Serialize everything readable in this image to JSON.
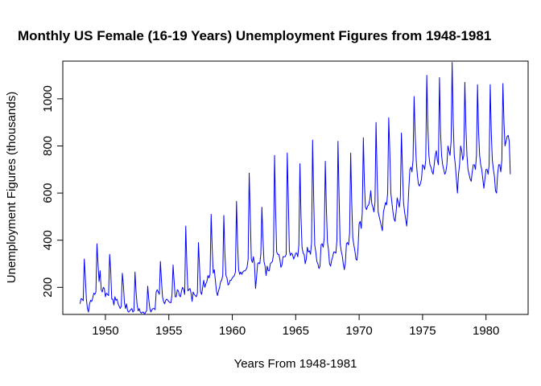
{
  "chart_data": {
    "type": "line",
    "title": "Monthly US Female (16-19 Years) Unemployment Figures from 1948-1981",
    "xlabel": "Years From 1948-1981",
    "ylabel": "Unemployment Figures (thousands)",
    "xlim": [
      1946.64,
      1983.32
    ],
    "ylim": [
      85,
      1160
    ],
    "x_ticks": [
      1950,
      1955,
      1960,
      1965,
      1970,
      1975,
      1980
    ],
    "x_tick_labels": [
      "1950",
      "1955",
      "1960",
      "1965",
      "1970",
      "1975",
      "1980"
    ],
    "y_ticks": [
      200,
      400,
      600,
      800,
      1000
    ],
    "y_tick_labels": [
      "200",
      "400",
      "600",
      "800",
      "1000"
    ],
    "grid": false,
    "legend": "none",
    "series_color": "#0000ff",
    "x_start": 1948.0,
    "x_step": 0.08333,
    "series": [
      {
        "values": [
          130,
          152,
          150,
          143,
          320,
          240,
          150,
          110,
          95,
          130,
          145,
          140,
          155,
          175,
          170,
          180,
          385,
          300,
          225,
          270,
          190,
          180,
          200,
          195,
          160,
          175,
          170,
          165,
          340,
          270,
          150,
          150,
          125,
          160,
          145,
          150,
          130,
          120,
          110,
          120,
          260,
          210,
          135,
          110,
          130,
          100,
          95,
          100,
          105,
          110,
          95,
          100,
          265,
          180,
          125,
          100,
          110,
          95,
          90,
          95,
          95,
          85,
          95,
          100,
          205,
          150,
          110,
          95,
          105,
          110,
          110,
          105,
          180,
          190,
          180,
          170,
          310,
          230,
          160,
          140,
          130,
          145,
          150,
          145,
          140,
          135,
          135,
          170,
          295,
          225,
          160,
          160,
          190,
          185,
          165,
          160,
          185,
          200,
          190,
          170,
          460,
          300,
          185,
          190,
          195,
          175,
          140,
          180,
          170,
          165,
          160,
          175,
          390,
          290,
          180,
          170,
          200,
          230,
          200,
          215,
          225,
          250,
          240,
          255,
          510,
          365,
          260,
          275,
          230,
          185,
          165,
          185,
          200,
          225,
          230,
          250,
          505,
          345,
          250,
          240,
          210,
          215,
          230,
          230,
          240,
          245,
          250,
          265,
          565,
          385,
          275,
          255,
          265,
          255,
          265,
          270,
          270,
          275,
          285,
          320,
          685,
          510,
          320,
          305,
          330,
          300,
          195,
          245,
          300,
          305,
          300,
          340,
          540,
          410,
          310,
          290,
          250,
          290,
          270,
          270,
          300,
          305,
          310,
          340,
          760,
          530,
          350,
          340,
          340,
          320,
          285,
          295,
          330,
          330,
          330,
          340,
          770,
          580,
          355,
          335,
          345,
          340,
          320,
          330,
          345,
          345,
          330,
          380,
          725,
          500,
          370,
          345,
          340,
          300,
          320,
          370,
          350,
          355,
          340,
          390,
          825,
          580,
          380,
          350,
          310,
          300,
          280,
          290,
          380,
          385,
          370,
          410,
          735,
          540,
          395,
          360,
          300,
          290,
          315,
          330,
          350,
          350,
          345,
          400,
          820,
          595,
          390,
          355,
          335,
          300,
          275,
          305,
          385,
          390,
          380,
          430,
          770,
          560,
          410,
          380,
          355,
          320,
          315,
          370,
          470,
          480,
          450,
          520,
          835,
          640,
          540,
          530,
          545,
          550,
          570,
          610,
          555,
          540,
          520,
          560,
          900,
          680,
          520,
          500,
          480,
          460,
          440,
          520,
          540,
          560,
          550,
          600,
          920,
          780,
          600,
          560,
          520,
          490,
          480,
          520,
          580,
          560,
          540,
          580,
          855,
          700,
          560,
          520,
          490,
          460,
          520,
          620,
          700,
          710,
          690,
          740,
          1010,
          850,
          740,
          680,
          640,
          630,
          640,
          660,
          720,
          715,
          700,
          740,
          1100,
          880,
          760,
          720,
          710,
          690,
          680,
          720,
          760,
          780,
          740,
          720,
          1090,
          860,
          760,
          720,
          700,
          680,
          690,
          720,
          800,
          780,
          760,
          820,
          1155,
          900,
          760,
          720,
          660,
          600,
          680,
          720,
          800,
          780,
          740,
          760,
          1070,
          880,
          760,
          700,
          680,
          660,
          650,
          690,
          720,
          720,
          700,
          760,
          1060,
          860,
          760,
          720,
          700,
          660,
          620,
          660,
          700,
          700,
          680,
          720,
          1060,
          860,
          740,
          700,
          670,
          610,
          600,
          680,
          720,
          720,
          690,
          740,
          1065,
          900,
          800,
          820,
          840,
          845,
          820,
          680
        ]
      }
    ]
  }
}
